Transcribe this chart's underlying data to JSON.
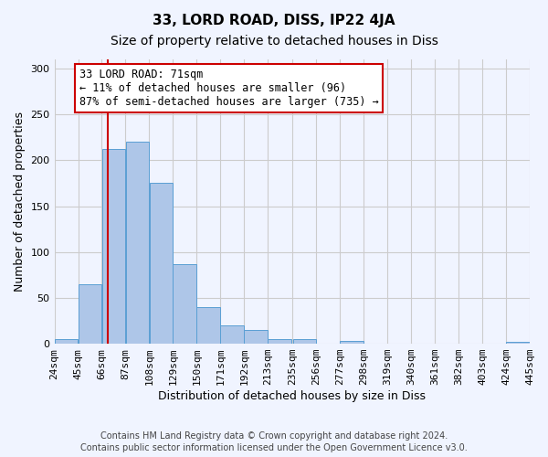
{
  "title": "33, LORD ROAD, DISS, IP22 4JA",
  "subtitle": "Size of property relative to detached houses in Diss",
  "xlabel": "Distribution of detached houses by size in Diss",
  "ylabel": "Number of detached properties",
  "footnote1": "Contains HM Land Registry data © Crown copyright and database right 2024.",
  "footnote2": "Contains public sector information licensed under the Open Government Licence v3.0.",
  "bin_labels": [
    "24sqm",
    "45sqm",
    "66sqm",
    "87sqm",
    "108sqm",
    "129sqm",
    "150sqm",
    "171sqm",
    "192sqm",
    "213sqm",
    "235sqm",
    "256sqm",
    "277sqm",
    "298sqm",
    "319sqm",
    "340sqm",
    "361sqm",
    "382sqm",
    "403sqm",
    "424sqm",
    "445sqm"
  ],
  "bin_edges": [
    24,
    45,
    66,
    87,
    108,
    129,
    150,
    171,
    192,
    213,
    235,
    256,
    277,
    298,
    319,
    340,
    361,
    382,
    403,
    424,
    445
  ],
  "bar_values": [
    5,
    65,
    212,
    220,
    175,
    87,
    40,
    20,
    15,
    5,
    5,
    0,
    3,
    0,
    0,
    0,
    0,
    0,
    0,
    2
  ],
  "bar_color": "#aec6e8",
  "bar_edge_color": "#5a9fd4",
  "property_size": 71,
  "vline_x": 71,
  "vline_color": "#cc0000",
  "annotation_text": "33 LORD ROAD: 71sqm\n← 11% of detached houses are smaller (96)\n87% of semi-detached houses are larger (735) →",
  "annotation_box_color": "white",
  "annotation_box_edge": "#cc0000",
  "ylim": [
    0,
    310
  ],
  "yticks": [
    0,
    50,
    100,
    150,
    200,
    250,
    300
  ],
  "grid_color": "#cccccc",
  "background_color": "#f0f4ff",
  "title_fontsize": 11,
  "subtitle_fontsize": 10,
  "axis_label_fontsize": 9,
  "tick_fontsize": 8,
  "annotation_fontsize": 8.5
}
